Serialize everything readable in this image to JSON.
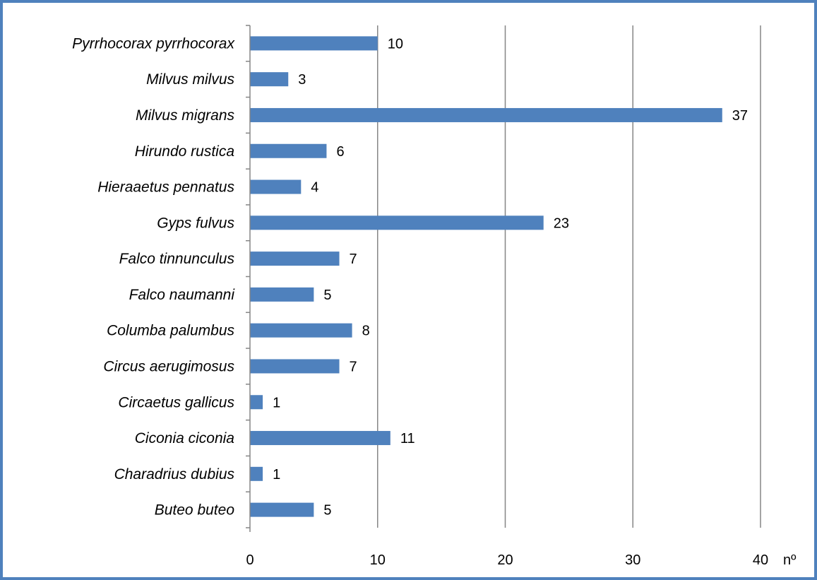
{
  "chart_data": {
    "type": "bar",
    "orientation": "horizontal",
    "categories": [
      "Pyrrhocorax pyrrhocorax",
      "Milvus milvus",
      "Milvus migrans",
      "Hirundo rustica",
      "Hieraaetus pennatus",
      "Gyps fulvus",
      "Falco tinnunculus",
      "Falco naumanni",
      "Columba palumbus",
      "Circus aerugimosus",
      "Circaetus gallicus",
      "Ciconia ciconia",
      "Charadrius dubius",
      "Buteo buteo"
    ],
    "values": [
      10,
      3,
      37,
      6,
      4,
      23,
      7,
      5,
      8,
      7,
      1,
      11,
      1,
      5
    ],
    "data_labels": [
      "10",
      "3",
      "37",
      "6",
      "4",
      "23",
      "7",
      "5",
      "8",
      "7",
      "1",
      "11",
      "1",
      "5"
    ],
    "xticks": [
      0,
      10,
      20,
      30,
      40
    ],
    "xtick_labels": [
      "0",
      "10",
      "20",
      "30",
      "40"
    ],
    "xlim": [
      0,
      40
    ],
    "xlabel": "nº",
    "grid": "vertical",
    "legend": "none",
    "bar_color": "#4F81BD",
    "grid_color": "#868686",
    "border_color": "#4F81BD"
  }
}
